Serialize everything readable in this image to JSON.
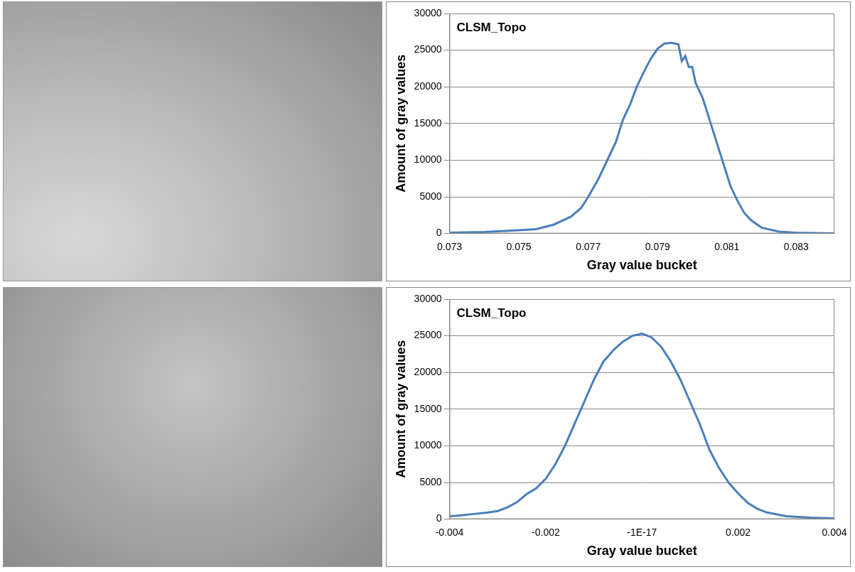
{
  "chart_data": [
    {
      "type": "line",
      "title": "CLSM_Topo",
      "x_label": "Gray value bucket",
      "y_label": "Amount of gray values",
      "color": "#4a7ebb",
      "grid": true,
      "x": [
        0.073,
        0.074,
        0.075,
        0.0755,
        0.076,
        0.0765,
        0.0768,
        0.077,
        0.0773,
        0.0776,
        0.0778,
        0.078,
        0.0782,
        0.0784,
        0.0786,
        0.0788,
        0.079,
        0.0792,
        0.0794,
        0.0796,
        0.0797,
        0.0798,
        0.0799,
        0.08,
        0.0801,
        0.0803,
        0.0805,
        0.0807,
        0.0809,
        0.0811,
        0.0813,
        0.0815,
        0.0817,
        0.082,
        0.0825,
        0.083,
        0.0841
      ],
      "values": [
        100,
        200,
        450,
        600,
        1200,
        2300,
        3500,
        5000,
        7500,
        10500,
        12500,
        15500,
        17500,
        20000,
        22000,
        23800,
        25200,
        25900,
        26000,
        25800,
        23500,
        24200,
        22700,
        22700,
        20500,
        18500,
        15500,
        12500,
        9500,
        6500,
        4500,
        2800,
        1800,
        800,
        250,
        100,
        20
      ],
      "xlim": [
        0.073,
        0.0841
      ],
      "xticks": [
        0.073,
        0.075,
        0.077,
        0.079,
        0.081,
        0.083
      ],
      "ylim": [
        0,
        30000
      ],
      "yticks": [
        0,
        5000,
        10000,
        15000,
        20000,
        25000,
        30000
      ]
    },
    {
      "type": "line",
      "title": "CLSM_Topo",
      "x_label": "Gray value bucket",
      "y_label": "Amount of gray values",
      "color": "#4a7ebb",
      "grid": true,
      "x": [
        -0.004,
        -0.0038,
        -0.0035,
        -0.0032,
        -0.003,
        -0.0028,
        -0.0026,
        -0.0024,
        -0.0022,
        -0.002,
        -0.0018,
        -0.0016,
        -0.0014,
        -0.0012,
        -0.001,
        -0.0008,
        -0.0006,
        -0.0004,
        -0.0002,
        0.0,
        0.0002,
        0.0004,
        0.0006,
        0.0008,
        0.001,
        0.0012,
        0.0014,
        0.0016,
        0.0018,
        0.002,
        0.0022,
        0.0024,
        0.0026,
        0.003,
        0.0035,
        0.004
      ],
      "values": [
        400,
        500,
        700,
        900,
        1100,
        1600,
        2300,
        3400,
        4200,
        5500,
        7500,
        10000,
        13000,
        16000,
        19000,
        21500,
        23000,
        24200,
        25000,
        25300,
        24800,
        23500,
        21500,
        19000,
        16000,
        13000,
        9500,
        7000,
        5000,
        3500,
        2200,
        1400,
        900,
        400,
        200,
        100
      ],
      "xlim": [
        -0.004,
        0.004
      ],
      "xticks": [
        -0.004,
        -0.002,
        {
          "value": -1e-17,
          "label": "-1E-17"
        },
        0.002,
        0.004
      ],
      "ylim": [
        0,
        30000
      ],
      "yticks": [
        0,
        5000,
        10000,
        15000,
        20000,
        25000,
        30000
      ]
    }
  ]
}
